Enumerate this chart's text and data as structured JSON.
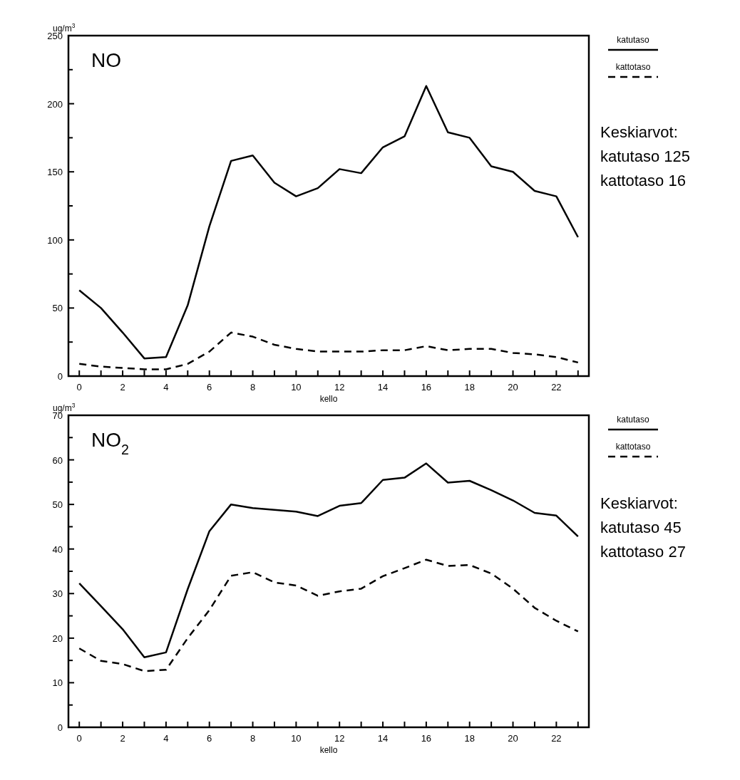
{
  "chart_data": [
    {
      "type": "line",
      "title": "NO",
      "ylabel": "ug/m$^{3}$",
      "xlabel": "kello",
      "legend": "top right",
      "x": [
        0,
        1,
        2,
        3,
        4,
        5,
        6,
        7,
        8,
        9,
        10,
        11,
        12,
        13,
        14,
        15,
        16,
        17,
        18,
        19,
        20,
        21,
        22,
        23
      ],
      "xlim": [
        -0.5,
        23.5
      ],
      "xticks": [
        0,
        {
          "value": 1,
          "label": null
        },
        2,
        {
          "value": 3,
          "label": null
        },
        4,
        {
          "value": 5,
          "label": null
        },
        6,
        {
          "value": 7,
          "label": null
        },
        8,
        {
          "value": 9,
          "label": null
        },
        10,
        {
          "value": 11,
          "label": null
        },
        12,
        {
          "value": 13,
          "label": null
        },
        14,
        {
          "value": 15,
          "label": null
        },
        16,
        {
          "value": 17,
          "label": null
        },
        18,
        {
          "value": 19,
          "label": null
        },
        20,
        {
          "value": 21,
          "label": null
        },
        22,
        {
          "value": 23,
          "label": null
        }
      ],
      "ylim": [
        0,
        250
      ],
      "yticks": [
        0,
        {
          "value": 25,
          "label": null
        },
        50,
        {
          "value": 75,
          "label": null
        },
        100,
        {
          "value": 125,
          "label": null
        },
        150,
        {
          "value": 175,
          "label": null
        },
        200,
        {
          "value": 225,
          "label": null
        },
        250
      ],
      "series": [
        {
          "name": "katutaso",
          "color": "#000000",
          "line_style": "solid",
          "values": [
            63,
            50,
            32,
            13,
            14,
            52,
            110,
            158,
            162,
            142,
            132,
            138,
            152,
            149,
            168,
            176,
            213,
            179,
            175,
            154,
            150,
            136,
            132,
            102
          ]
        },
        {
          "name": "kattotaso",
          "color": "#000000",
          "line_style": "dashed",
          "values": [
            9,
            7,
            6,
            5,
            5,
            9,
            18,
            32,
            29,
            23,
            20,
            18,
            18,
            18,
            19,
            19,
            22,
            19,
            20,
            20,
            17,
            16,
            14,
            10
          ]
        }
      ],
      "annotations": [
        "Keskiarvot:",
        "katutaso 125",
        "kattotaso 16"
      ]
    },
    {
      "type": "line",
      "title": "NO$_{2}$",
      "ylabel": "ug/m$^{3}$",
      "xlabel": "kello",
      "legend": "top right",
      "x": [
        0,
        1,
        2,
        3,
        4,
        5,
        6,
        7,
        8,
        9,
        10,
        11,
        12,
        13,
        14,
        15,
        16,
        17,
        18,
        19,
        20,
        21,
        22,
        23
      ],
      "xlim": [
        -0.5,
        23.5
      ],
      "xticks": [
        0,
        {
          "value": 1,
          "label": null
        },
        2,
        {
          "value": 3,
          "label": null
        },
        4,
        {
          "value": 5,
          "label": null
        },
        6,
        {
          "value": 7,
          "label": null
        },
        8,
        {
          "value": 9,
          "label": null
        },
        10,
        {
          "value": 11,
          "label": null
        },
        12,
        {
          "value": 13,
          "label": null
        },
        14,
        {
          "value": 15,
          "label": null
        },
        16,
        {
          "value": 17,
          "label": null
        },
        18,
        {
          "value": 19,
          "label": null
        },
        20,
        {
          "value": 21,
          "label": null
        },
        22,
        {
          "value": 23,
          "label": null
        }
      ],
      "ylim": [
        0,
        70
      ],
      "yticks": [
        0,
        {
          "value": 5,
          "label": null
        },
        10,
        {
          "value": 15,
          "label": null
        },
        20,
        {
          "value": 25,
          "label": null
        },
        30,
        {
          "value": 35,
          "label": null
        },
        40,
        {
          "value": 45,
          "label": null
        },
        50,
        {
          "value": 55,
          "label": null
        },
        60,
        {
          "value": 65,
          "label": null
        },
        70
      ],
      "series": [
        {
          "name": "katutaso",
          "color": "#000000",
          "line_style": "solid",
          "values": [
            32.3,
            27.2,
            22,
            15.7,
            16.8,
            31,
            44,
            50,
            49.2,
            48.8,
            48.4,
            47.4,
            49.7,
            50.3,
            55.5,
            56,
            59.2,
            54.9,
            55.3,
            53.2,
            50.9,
            48.1,
            47.5,
            42.8
          ]
        },
        {
          "name": "kattotaso",
          "color": "#000000",
          "line_style": "dashed",
          "values": [
            17.7,
            14.9,
            14.2,
            12.6,
            12.9,
            20,
            26.3,
            34,
            34.8,
            32.5,
            31.8,
            29.5,
            30.5,
            31.1,
            33.9,
            35.7,
            37.6,
            36.2,
            36.4,
            34.5,
            31.1,
            26.8,
            23.9,
            21.5
          ]
        }
      ],
      "annotations": [
        "Keskiarvot:",
        "katutaso 45",
        "kattotaso 27"
      ]
    }
  ]
}
